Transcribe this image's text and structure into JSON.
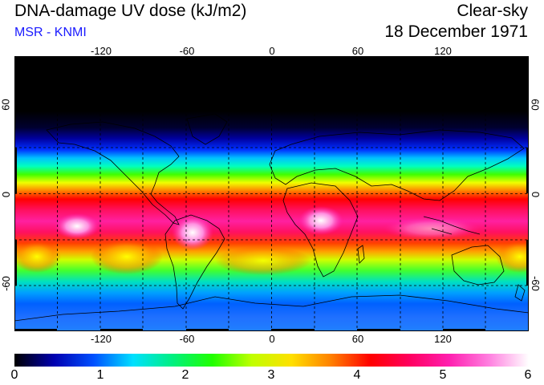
{
  "header": {
    "title": "DNA-damage UV dose (kJ/m2)",
    "source": "MSR - KNMI",
    "sky": "Clear-sky",
    "date": "18 December 1971"
  },
  "map": {
    "lon_ticks": [
      "-120",
      "-60",
      "0",
      "60",
      "120"
    ],
    "lat_ticks": [
      "60",
      "0",
      "-60"
    ],
    "colors": {
      "land_outline": "#000000",
      "grid": "#000000"
    }
  },
  "colorbar": {
    "ticks": [
      "0",
      "1",
      "2",
      "3",
      "4",
      "5",
      "6"
    ],
    "min": 0,
    "max": 6,
    "stops": [
      "#000000",
      "#0000b0",
      "#0050ff",
      "#00e0ff",
      "#00f080",
      "#20ff00",
      "#c0ff00",
      "#ffe000",
      "#ff8000",
      "#ff0000",
      "#ff0060",
      "#ff20b0",
      "#ff80e0",
      "#ffffff"
    ]
  }
}
